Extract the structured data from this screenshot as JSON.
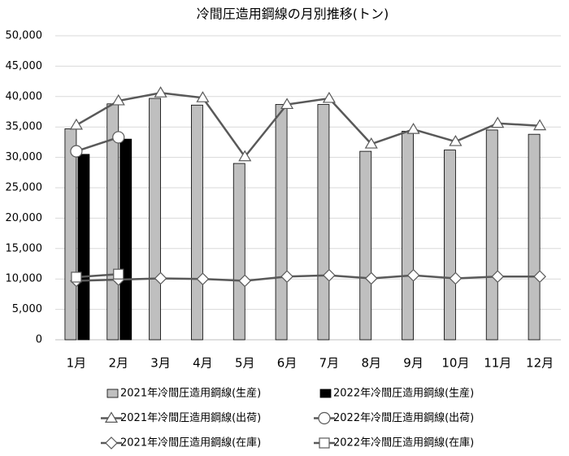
{
  "chart_data": {
    "type": "combo",
    "title": "冷間圧造用鋼線の月別推移(トン)",
    "categories": [
      "1月",
      "2月",
      "3月",
      "4月",
      "5月",
      "6月",
      "7月",
      "8月",
      "9月",
      "10月",
      "11月",
      "12月"
    ],
    "ylim": [
      0,
      50000
    ],
    "yticks": [
      0,
      {
        "value": 5000,
        "label": "5,000"
      },
      {
        "value": 10000,
        "label": "10,000"
      },
      {
        "value": 15000,
        "label": "15,000"
      },
      {
        "value": 20000,
        "label": "20,000"
      },
      {
        "value": 25000,
        "label": "25,000"
      },
      {
        "value": 30000,
        "label": "30,000"
      },
      {
        "value": 35000,
        "label": "35,000"
      },
      {
        "value": 40000,
        "label": "40,000"
      },
      {
        "value": 45000,
        "label": "45,000"
      },
      {
        "value": 50000,
        "label": "50,000"
      }
    ],
    "grid": true,
    "series": [
      {
        "name": "2021年冷間圧造用鋼線(生産)",
        "kind": "bar",
        "color": "#bfbfbf",
        "values": [
          34700,
          38800,
          39700,
          38600,
          29000,
          38700,
          38700,
          31000,
          34300,
          31200,
          34500,
          33800
        ]
      },
      {
        "name": "2022年冷間圧造用鋼線(生産)",
        "kind": "bar",
        "color": "#000000",
        "values": [
          30500,
          33000,
          null,
          null,
          null,
          null,
          null,
          null,
          null,
          null,
          null,
          null
        ]
      },
      {
        "name": "2021年冷間圧造用鋼線(出荷)",
        "kind": "line",
        "marker": "triangle",
        "color": "#595959",
        "values": [
          35300,
          39300,
          40600,
          39800,
          30100,
          38700,
          39700,
          32200,
          34600,
          32600,
          35600,
          35200
        ]
      },
      {
        "name": "2022年冷間圧造用鋼線(出荷)",
        "kind": "line",
        "marker": "circle",
        "color": "#595959",
        "values": [
          31000,
          33300,
          null,
          null,
          null,
          null,
          null,
          null,
          null,
          null,
          null,
          null
        ]
      },
      {
        "name": "2021年冷間圧造用鋼線(在庫)",
        "kind": "line",
        "marker": "diamond",
        "color": "#595959",
        "values": [
          9700,
          9900,
          10100,
          10000,
          9700,
          10400,
          10600,
          10100,
          10600,
          10100,
          10400,
          10400
        ]
      },
      {
        "name": "2022年冷間圧造用鋼線(在庫)",
        "kind": "line",
        "marker": "square",
        "color": "#595959",
        "values": [
          10300,
          10800,
          null,
          null,
          null,
          null,
          null,
          null,
          null,
          null,
          null,
          null
        ]
      }
    ]
  }
}
